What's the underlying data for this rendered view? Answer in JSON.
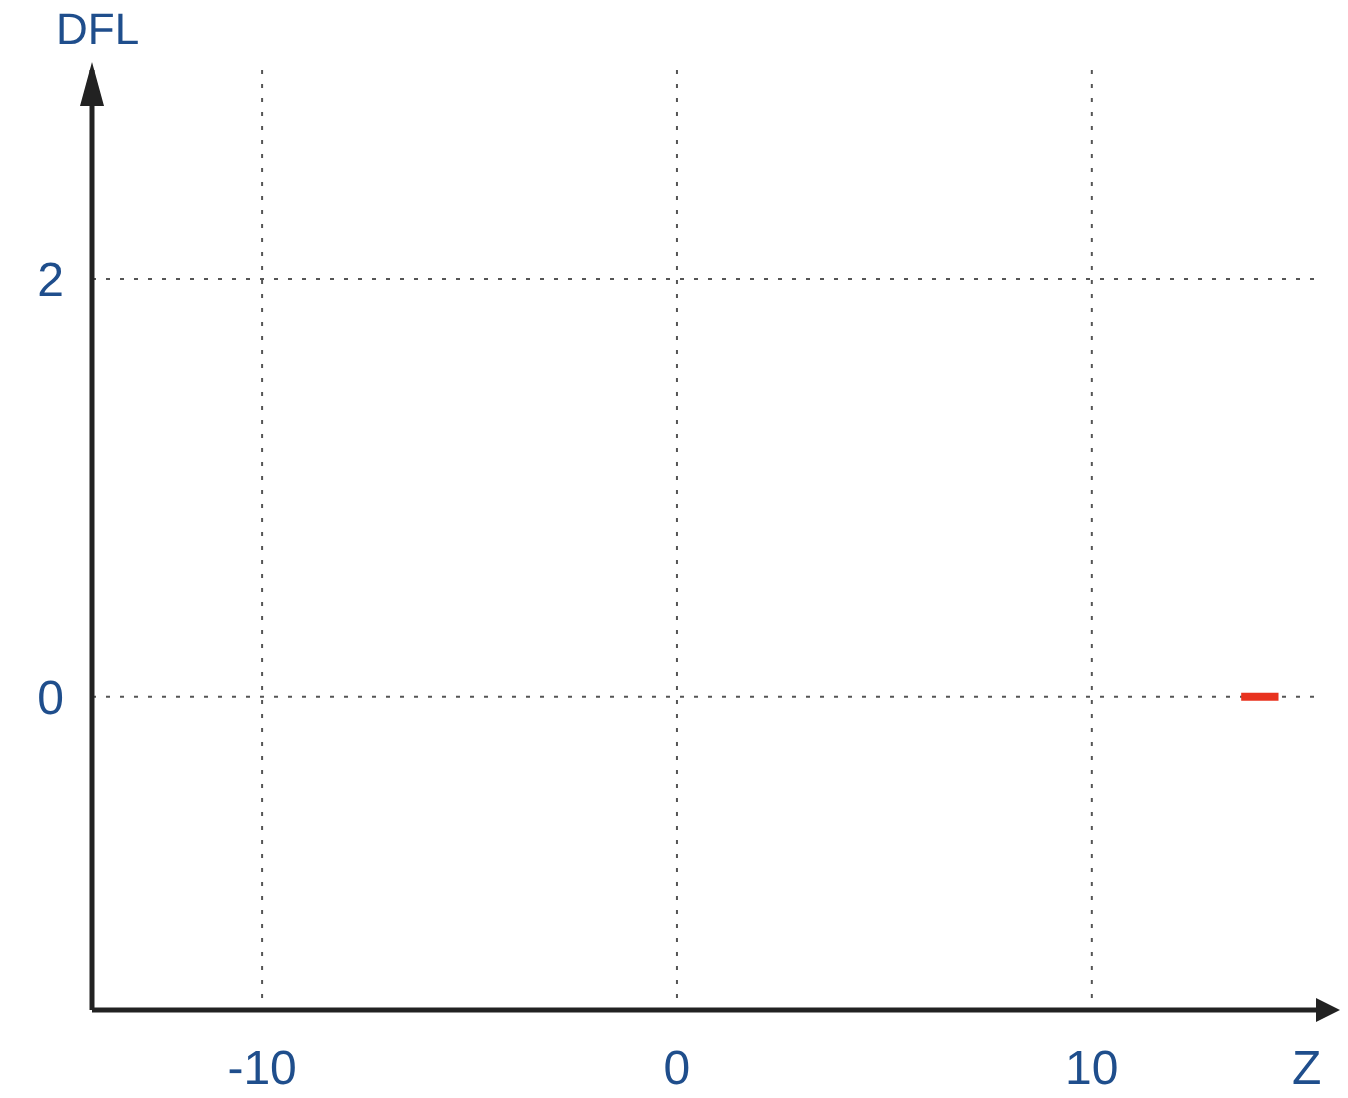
{
  "chart_data": {
    "type": "line",
    "xlabel": "Z",
    "ylabel": "DFL",
    "xlim": [
      -14.1,
      15.5
    ],
    "ylim": [
      -1.5,
      3.0
    ],
    "xticks": [
      -10,
      0,
      10
    ],
    "yticks": [
      0,
      2
    ],
    "grid": true,
    "marker": "none",
    "line_style": "solid",
    "series": [
      {
        "color": "#e8321e",
        "x": [
          13.6,
          14.5
        ],
        "values": [
          0,
          0
        ]
      }
    ]
  }
}
